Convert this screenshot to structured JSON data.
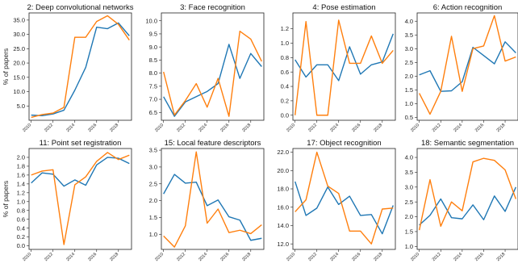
{
  "colors": {
    "blue": "#1f77b4",
    "orange": "#ff7f0e"
  },
  "chart_data": [
    {
      "type": "line",
      "title": "2: Deep convolutional networks",
      "ylabel": "% of papers",
      "x": [
        2010,
        2011,
        2012,
        2013,
        2014,
        2015,
        2016,
        2017,
        2018,
        2019
      ],
      "ylim": [
        0,
        37.5
      ],
      "yticks": [
        5.0,
        10.0,
        15.0,
        20.0,
        25.0,
        30.0,
        35.0
      ],
      "xticks": [
        2010,
        2012,
        2014,
        2016,
        2018
      ],
      "series": [
        {
          "color": "blue",
          "values": [
            1.8,
            1.6,
            2.2,
            3.5,
            10.5,
            18.5,
            32.5,
            32.0,
            34.0,
            29.5
          ]
        },
        {
          "color": "orange",
          "values": [
            1.0,
            2.0,
            2.5,
            4.5,
            29.0,
            29.0,
            34.5,
            36.5,
            33.5,
            28.0
          ]
        }
      ]
    },
    {
      "type": "line",
      "title": "3: Face recognition",
      "ylabel": "",
      "x": [
        2010,
        2011,
        2012,
        2013,
        2014,
        2015,
        2016,
        2017,
        2018,
        2019
      ],
      "ylim": [
        6.2,
        10.3
      ],
      "yticks": [
        6.5,
        7.0,
        7.5,
        8.0,
        8.5,
        9.0,
        9.5,
        10.0
      ],
      "xticks": [
        2010,
        2012,
        2014,
        2016,
        2018
      ],
      "series": [
        {
          "color": "blue",
          "values": [
            7.1,
            6.35,
            6.9,
            7.1,
            7.3,
            7.6,
            9.1,
            7.8,
            8.75,
            8.25
          ]
        },
        {
          "color": "orange",
          "values": [
            8.05,
            6.4,
            6.95,
            7.6,
            6.7,
            7.8,
            6.35,
            9.6,
            9.3,
            8.45
          ]
        }
      ]
    },
    {
      "type": "line",
      "title": "4: Pose estimation",
      "ylabel": "",
      "x": [
        2010,
        2011,
        2012,
        2013,
        2014,
        2015,
        2016,
        2017,
        2018,
        2019
      ],
      "ylim": [
        -0.07,
        1.42
      ],
      "yticks": [
        0.0,
        0.2,
        0.4,
        0.6,
        0.8,
        1.0,
        1.2
      ],
      "xticks": [
        2010,
        2012,
        2014,
        2016,
        2018
      ],
      "series": [
        {
          "color": "blue",
          "values": [
            0.77,
            0.53,
            0.7,
            0.7,
            0.48,
            0.95,
            0.57,
            0.7,
            0.74,
            1.13
          ]
        },
        {
          "color": "orange",
          "values": [
            0.0,
            1.3,
            0.0,
            0.0,
            1.32,
            0.72,
            0.72,
            1.1,
            0.72,
            0.9
          ]
        }
      ]
    },
    {
      "type": "line",
      "title": "6: Action recognition",
      "ylabel": "",
      "x": [
        2010,
        2011,
        2012,
        2013,
        2014,
        2015,
        2016,
        2017,
        2018,
        2019
      ],
      "ylim": [
        0.4,
        4.3
      ],
      "yticks": [
        0.5,
        1.0,
        1.5,
        2.0,
        2.5,
        3.0,
        3.5,
        4.0
      ],
      "xticks": [
        2010,
        2012,
        2014,
        2016,
        2018
      ],
      "series": [
        {
          "color": "blue",
          "values": [
            2.05,
            2.2,
            1.45,
            1.47,
            1.8,
            3.05,
            2.75,
            2.45,
            3.25,
            2.85
          ]
        },
        {
          "color": "orange",
          "values": [
            1.38,
            0.62,
            1.45,
            3.45,
            1.45,
            3.0,
            3.1,
            4.2,
            2.55,
            2.7
          ]
        }
      ]
    },
    {
      "type": "line",
      "title": "11: Point set registration",
      "ylabel": "% of papers",
      "x": [
        2010,
        2011,
        2012,
        2013,
        2014,
        2015,
        2016,
        2017,
        2018,
        2019
      ],
      "ylim": [
        -0.08,
        2.2
      ],
      "yticks": [
        0.0,
        0.2,
        0.4,
        0.6,
        0.8,
        1.0,
        1.2,
        1.4,
        1.6,
        1.8,
        2.0
      ],
      "xticks": [
        2010,
        2012,
        2014,
        2016,
        2018
      ],
      "series": [
        {
          "color": "blue",
          "values": [
            1.42,
            1.65,
            1.62,
            1.35,
            1.49,
            1.37,
            1.83,
            2.0,
            1.98,
            1.86
          ]
        },
        {
          "color": "orange",
          "values": [
            1.6,
            1.69,
            1.72,
            0.03,
            1.38,
            1.56,
            1.91,
            2.11,
            1.95,
            2.05
          ]
        }
      ]
    },
    {
      "type": "line",
      "title": "15: Local feature descriptors",
      "ylabel": "",
      "x": [
        2010,
        2011,
        2012,
        2013,
        2014,
        2015,
        2016,
        2017,
        2018,
        2019
      ],
      "ylim": [
        0.55,
        3.55
      ],
      "yticks": [
        1.0,
        1.5,
        2.0,
        2.5,
        3.0,
        3.5
      ],
      "xticks": [
        2010,
        2012,
        2014,
        2016,
        2018
      ],
      "series": [
        {
          "color": "blue",
          "values": [
            2.2,
            2.78,
            2.52,
            2.55,
            1.85,
            2.02,
            1.52,
            1.42,
            0.82,
            0.88
          ]
        },
        {
          "color": "orange",
          "values": [
            0.95,
            0.62,
            1.25,
            3.45,
            1.33,
            1.75,
            1.05,
            1.12,
            1.02,
            1.28
          ]
        }
      ]
    },
    {
      "type": "line",
      "title": "17: Object recognition",
      "ylabel": "",
      "x": [
        2010,
        2011,
        2012,
        2013,
        2014,
        2015,
        2016,
        2017,
        2018,
        2019
      ],
      "ylim": [
        11.4,
        22.4
      ],
      "yticks": [
        12.0,
        14.0,
        16.0,
        18.0,
        20.0,
        22.0
      ],
      "xticks": [
        2010,
        2012,
        2014,
        2016,
        2018
      ],
      "series": [
        {
          "color": "blue",
          "values": [
            18.8,
            15.1,
            15.9,
            18.2,
            16.3,
            17.2,
            15.1,
            15.2,
            13.1,
            16.2
          ]
        },
        {
          "color": "orange",
          "values": [
            15.5,
            16.8,
            22.0,
            18.3,
            17.5,
            13.4,
            13.4,
            12.0,
            15.8,
            15.9
          ]
        }
      ]
    },
    {
      "type": "line",
      "title": "18: Semantic segmentation",
      "ylabel": "",
      "x": [
        2010,
        2011,
        2012,
        2013,
        2014,
        2015,
        2016,
        2017,
        2018,
        2019
      ],
      "ylim": [
        0.9,
        4.3
      ],
      "yticks": [
        1.0,
        1.5,
        2.0,
        2.5,
        3.0,
        3.5,
        4.0
      ],
      "xticks": [
        2010,
        2012,
        2014,
        2016,
        2018
      ],
      "series": [
        {
          "color": "blue",
          "values": [
            1.72,
            2.05,
            2.6,
            1.97,
            1.93,
            2.4,
            1.9,
            2.7,
            2.18,
            3.0
          ]
        },
        {
          "color": "orange",
          "values": [
            1.55,
            3.25,
            1.68,
            2.5,
            2.2,
            3.85,
            3.97,
            3.9,
            3.58,
            2.6
          ]
        }
      ]
    }
  ]
}
